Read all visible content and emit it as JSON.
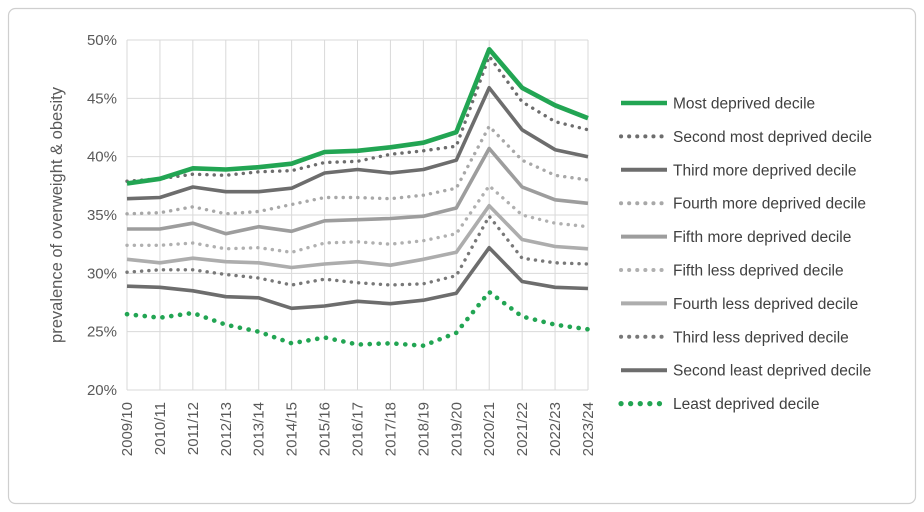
{
  "frame": {
    "border_color": "#cfcfcf",
    "background": "#ffffff"
  },
  "chart_data": {
    "type": "line",
    "title": "",
    "ylabel": "prevalence of overweight & obesity",
    "xlabel": "",
    "ylim": [
      20,
      50
    ],
    "grid": true,
    "legend_position": "right",
    "text_color": "#595959",
    "gridline_color": "#d9d9d9",
    "y_ticks": [
      "20%",
      "25%",
      "30%",
      "35%",
      "40%",
      "45%",
      "50%"
    ],
    "y_tick_values": [
      20,
      25,
      30,
      35,
      40,
      45,
      50
    ],
    "x_categories": [
      "2009/10",
      "2010/11",
      "2011/12",
      "2012/13",
      "2013/14",
      "2014/15",
      "2015/16",
      "2016/17",
      "2017/18",
      "2018/19",
      "2019/20",
      "2020/21",
      "2021/22",
      "2022/23",
      "2023/24"
    ],
    "series": [
      {
        "name": "Most deprived decile",
        "color": "#22a553",
        "style": "solid",
        "width": 4.6,
        "values": [
          37.7,
          38.1,
          39.0,
          38.9,
          39.1,
          39.4,
          40.4,
          40.5,
          40.8,
          41.2,
          42.1,
          49.2,
          45.9,
          44.4,
          43.3
        ]
      },
      {
        "name": "Second most deprived decile",
        "color": "#6d6d6d",
        "style": "dotted",
        "width": 3.4,
        "values": [
          37.9,
          38.1,
          38.5,
          38.4,
          38.7,
          38.8,
          39.5,
          39.6,
          40.2,
          40.5,
          40.9,
          48.6,
          44.7,
          43.0,
          42.3
        ]
      },
      {
        "name": "Third more deprived decile",
        "color": "#6d6d6d",
        "style": "solid",
        "width": 3.6,
        "values": [
          36.4,
          36.5,
          37.4,
          37.0,
          37.0,
          37.3,
          38.6,
          38.9,
          38.6,
          38.9,
          39.7,
          45.9,
          42.3,
          40.6,
          40.0
        ]
      },
      {
        "name": "Fourth more deprived decile",
        "color": "#a8a8a8",
        "style": "dotted",
        "width": 3.4,
        "values": [
          35.1,
          35.2,
          35.7,
          35.1,
          35.3,
          35.9,
          36.5,
          36.5,
          36.4,
          36.7,
          37.3,
          42.6,
          39.7,
          38.4,
          38.0
        ]
      },
      {
        "name": "Fifth more deprived decile",
        "color": "#9d9d9d",
        "style": "solid",
        "width": 3.6,
        "values": [
          33.8,
          33.8,
          34.3,
          33.4,
          34.0,
          33.6,
          34.5,
          34.6,
          34.7,
          34.9,
          35.6,
          40.7,
          37.4,
          36.3,
          36.0
        ]
      },
      {
        "name": "Fifth less deprived decile",
        "color": "#b0b0b0",
        "style": "dotted",
        "width": 3.4,
        "values": [
          32.4,
          32.4,
          32.6,
          32.1,
          32.2,
          31.8,
          32.6,
          32.7,
          32.5,
          32.8,
          33.4,
          37.5,
          35.0,
          34.3,
          34.0
        ]
      },
      {
        "name": "Fourth less deprived decile",
        "color": "#adadad",
        "style": "solid",
        "width": 3.6,
        "values": [
          31.2,
          30.9,
          31.3,
          31.0,
          30.9,
          30.5,
          30.8,
          31.0,
          30.7,
          31.2,
          31.8,
          35.8,
          32.9,
          32.3,
          32.1
        ]
      },
      {
        "name": "Third less deprived decile",
        "color": "#787878",
        "style": "dotted",
        "width": 3.4,
        "values": [
          30.1,
          30.3,
          30.3,
          29.9,
          29.6,
          29.0,
          29.5,
          29.2,
          29.0,
          29.1,
          29.8,
          34.9,
          31.3,
          30.9,
          30.8
        ]
      },
      {
        "name": "Second least deprived decile",
        "color": "#6d6d6d",
        "style": "solid",
        "width": 3.6,
        "values": [
          28.9,
          28.8,
          28.5,
          28.0,
          27.9,
          27.0,
          27.2,
          27.6,
          27.4,
          27.7,
          28.3,
          32.2,
          29.3,
          28.8,
          28.7
        ]
      },
      {
        "name": "Least deprived decile",
        "color": "#22a553",
        "style": "dotted",
        "width": 4.6,
        "values": [
          26.5,
          26.2,
          26.6,
          25.6,
          25.0,
          24.0,
          24.5,
          23.9,
          24.0,
          23.8,
          24.9,
          28.4,
          26.3,
          25.6,
          25.2
        ]
      }
    ]
  }
}
